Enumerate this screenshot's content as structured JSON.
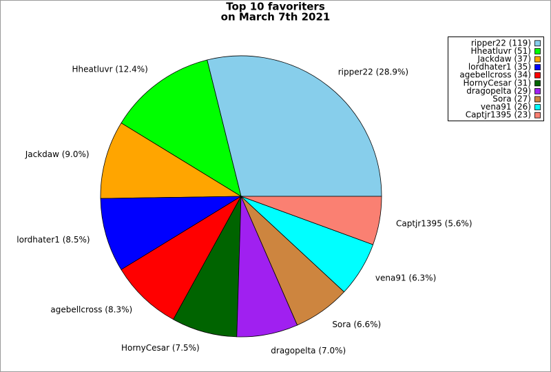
{
  "chart_data": {
    "type": "pie",
    "title": "Top 10 favoriters",
    "subtitle": "on March 7th 2021",
    "values": [
      119,
      51,
      37,
      35,
      34,
      31,
      29,
      27,
      26,
      23
    ],
    "value_labels": [
      "ripper22 (28.9%)",
      "Hheatluvr (12.4%)",
      "Jackdaw (9.0%)",
      "lordhater1 (8.5%)",
      "agebellcross (8.3%)",
      "HornyCesar (7.5%)",
      "dragopelta (7.0%)",
      "Sora (6.6%)",
      "vena91 (6.3%)",
      "Captjr1395 (5.6%)"
    ],
    "legend_labels": [
      "ripper22 (119)",
      "Hheatluvr (51)",
      "Jackdaw (37)",
      "lordhater1 (35)",
      "agebellcross (34)",
      "HornyCesar (31)",
      "dragopelta (29)",
      "Sora (27)",
      "vena91 (26)",
      "Captjr1395 (23)"
    ],
    "colors": [
      "#87ceeb",
      "#00ff00",
      "#ffa500",
      "#0000ff",
      "#ff0000",
      "#006400",
      "#a020f0",
      "#cd853f",
      "#00ffff",
      "#fa8072"
    ],
    "legend": "upper right"
  }
}
